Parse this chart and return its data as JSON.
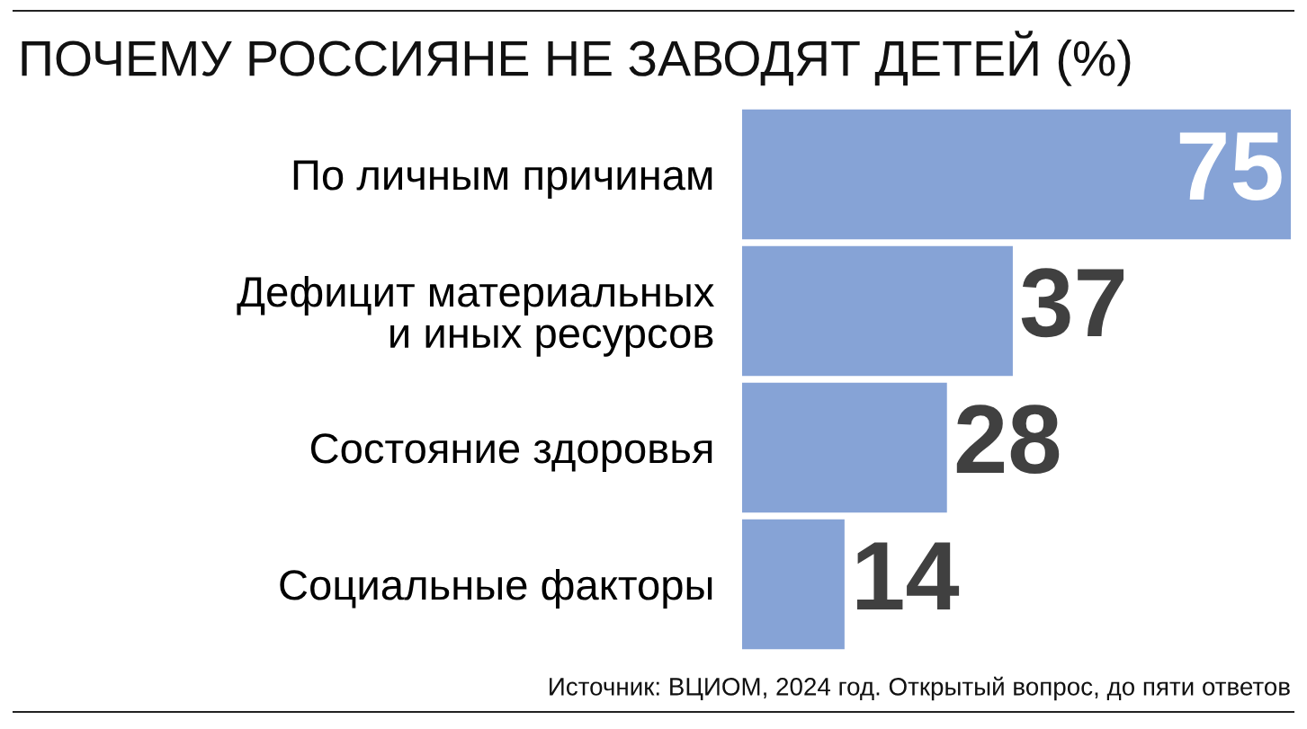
{
  "chart_data": {
    "type": "bar",
    "orientation": "horizontal",
    "title": "ПОЧЕМУ РОССИЯНЕ НЕ ЗАВОДЯТ ДЕТЕЙ (%)",
    "categories": [
      "По личным причинам",
      "Дефицит материальных\nи иных ресурсов",
      "Состояние здоровья",
      "Социальные факторы"
    ],
    "values": [
      75,
      37,
      28,
      14
    ],
    "color": "#86a3d6",
    "data_labels": true,
    "grid": false,
    "tick_labels": "y",
    "annotations": [
      "Источник: ВЦИОМ, 2024 год. Открытый вопрос, до пяти ответов"
    ]
  }
}
